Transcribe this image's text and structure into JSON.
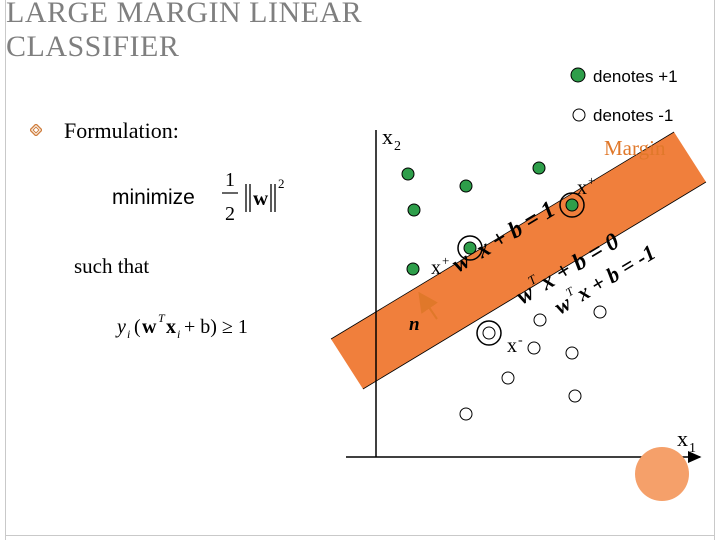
{
  "slide": {
    "title_line1": "LARGE MARGIN LINEAR",
    "title_line2": "CLASSIFIER",
    "bullet_text": "Formulation:",
    "such_that": "such that"
  },
  "formula": {
    "minimize_word": "minimize",
    "frac_num": "1",
    "frac_den": "2",
    "norm_w": "w",
    "exponent": "2",
    "constraint_y": "y",
    "constraint_i": "i",
    "constraint_w": "w",
    "constraint_T": "T",
    "constraint_x": "x",
    "constraint_rest": "+ b) ≥ 1"
  },
  "legend": {
    "positive": "denotes +1",
    "negative": "denotes -1"
  },
  "labels": {
    "x2": "x",
    "x2_sub": "2",
    "x1": "x",
    "x1_sub": "1",
    "margin": "Margin",
    "x_plus_top": "x",
    "x_plus_top_sup": "+",
    "x_plus_left": "x",
    "x_plus_left_sup": "+",
    "x_minus": "x",
    "x_minus_sup": "-",
    "normal": "n",
    "eq_pos_wt": "w",
    "eq_pos_T": "T",
    "eq_pos_rest": "x + b = 1",
    "eq_mid_wt": "w",
    "eq_mid_T": "T",
    "eq_mid_rest": "x + b = 0",
    "eq_neg_wt": "w",
    "eq_neg_T": "T",
    "eq_neg_rest": "x + b = -1"
  },
  "colors": {
    "positive_fill": "#2e9e4a",
    "margin_band": "#f07f3c",
    "margin_text": "#e0782a",
    "title_gray": "#7f7f7f"
  },
  "icons": {
    "bullet": "hollow-diamond-bullet-icon",
    "normal_arrow": "arrow-icon"
  }
}
